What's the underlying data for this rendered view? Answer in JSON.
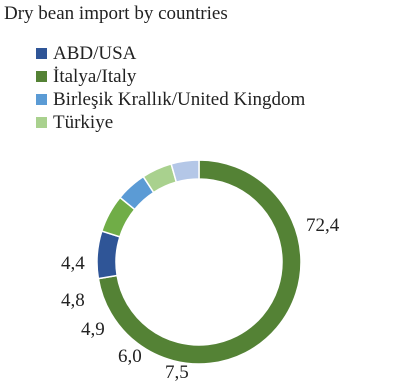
{
  "chart_data": {
    "type": "pie",
    "variant": "donut",
    "title": "Dry bean import by countries",
    "legend_position": "top-left",
    "series": [
      {
        "name": "ABD/USA",
        "value": 7.5,
        "label": "7,5",
        "color": "#2f5597"
      },
      {
        "name": "İtalya/Italy",
        "value": 72.4,
        "label": "72,4",
        "color": "#548235"
      },
      {
        "name": "Birleşik Krallık/United Kingdom",
        "value": 4.9,
        "label": "4,9",
        "color": "#5b9bd5"
      },
      {
        "name": "Türkiye",
        "value": 4.8,
        "label": "4,8",
        "color": "#a9d18e"
      }
    ],
    "other_slices": [
      {
        "value": 6.0,
        "label": "6,0",
        "color": "#70ad47"
      },
      {
        "value": 4.4,
        "label": "4,4",
        "color": "#b4c7e7"
      }
    ]
  }
}
